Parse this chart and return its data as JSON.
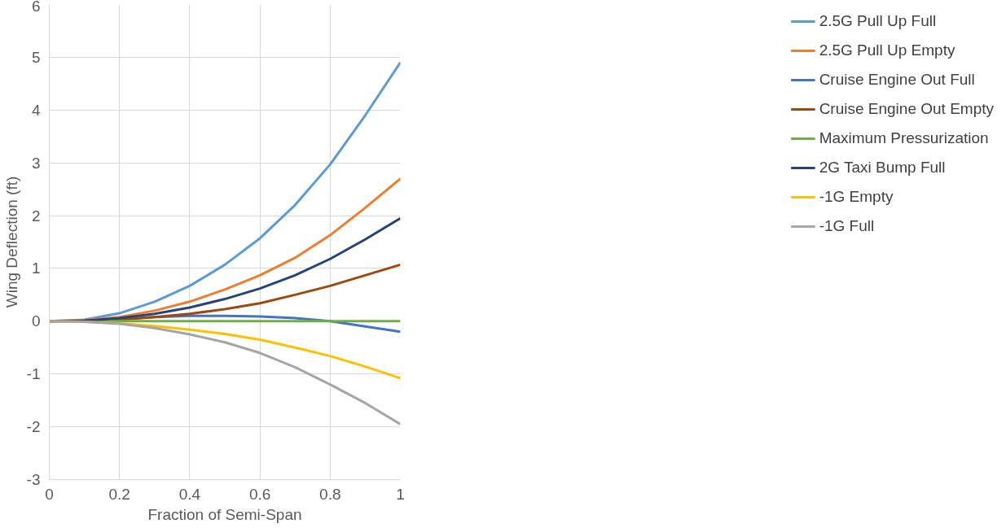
{
  "chart_data": {
    "type": "line",
    "xlabel": "Fraction of Semi-Span",
    "ylabel": "Wing Deflection (ft)",
    "x": [
      0,
      0.1,
      0.2,
      0.3,
      0.4,
      0.5,
      0.6,
      0.7,
      0.8,
      0.9,
      1.0
    ],
    "series": [
      {
        "name": "2.5G Pull Up Full",
        "color": "#5b9bd5",
        "values": [
          0,
          0.03,
          0.15,
          0.37,
          0.67,
          1.07,
          1.57,
          2.2,
          2.97,
          3.9,
          4.9
        ]
      },
      {
        "name": "2.5G Pull Up Empty",
        "color": "#ed7d31",
        "values": [
          0,
          0.02,
          0.08,
          0.2,
          0.37,
          0.6,
          0.87,
          1.2,
          1.63,
          2.15,
          2.7
        ]
      },
      {
        "name": "Cruise Engine Out Full",
        "color": "#4472c4",
        "values": [
          0,
          0.01,
          0.04,
          0.08,
          0.1,
          0.1,
          0.09,
          0.06,
          0.0,
          -0.1,
          -0.2
        ]
      },
      {
        "name": "Cruise Engine Out Empty",
        "color": "#9e480e",
        "values": [
          0,
          0.01,
          0.03,
          0.08,
          0.14,
          0.23,
          0.34,
          0.5,
          0.67,
          0.87,
          1.07
        ]
      },
      {
        "name": "Maximum Pressurization",
        "color": "#70ad47",
        "values": [
          0,
          0,
          0,
          0,
          0,
          0,
          0,
          0,
          0,
          0,
          0
        ]
      },
      {
        "name": "2G Taxi Bump Full",
        "color": "#264478",
        "values": [
          0,
          0.01,
          0.06,
          0.14,
          0.26,
          0.42,
          0.62,
          0.87,
          1.18,
          1.55,
          1.95
        ]
      },
      {
        "name": "-1G Empty",
        "color": "#ffc000",
        "values": [
          0,
          -0.01,
          -0.04,
          -0.09,
          -0.16,
          -0.24,
          -0.35,
          -0.5,
          -0.66,
          -0.86,
          -1.08
        ]
      },
      {
        "name": "-1G Full",
        "color": "#a5a5a5",
        "values": [
          0,
          -0.01,
          -0.05,
          -0.13,
          -0.25,
          -0.4,
          -0.6,
          -0.87,
          -1.2,
          -1.55,
          -1.95
        ]
      }
    ],
    "xlim": [
      0,
      1
    ],
    "xticks": [
      0,
      0.2,
      0.4,
      0.6,
      0.8,
      1
    ],
    "ylim": [
      -3,
      6
    ],
    "yticks": [
      -3,
      -2,
      -1,
      0,
      1,
      2,
      3,
      4,
      5,
      6
    ],
    "grid": true,
    "legend": "right",
    "marker": "none",
    "line_style": "solid"
  }
}
